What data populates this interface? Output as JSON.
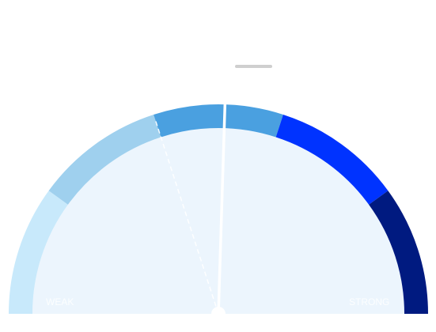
{
  "chart_data": {
    "type": "gauge",
    "labels": [
      "WEAK",
      "STRONG"
    ],
    "lim": [
      0,
      100
    ],
    "segments": {
      "values": [
        20,
        20,
        20,
        20,
        20
      ],
      "colors": [
        "#c8e9fb",
        "#9fd0ee",
        "#4aa0e0",
        "#0033ff",
        "#001a80"
      ]
    },
    "needle_value": 51,
    "marker_value": 40
  }
}
